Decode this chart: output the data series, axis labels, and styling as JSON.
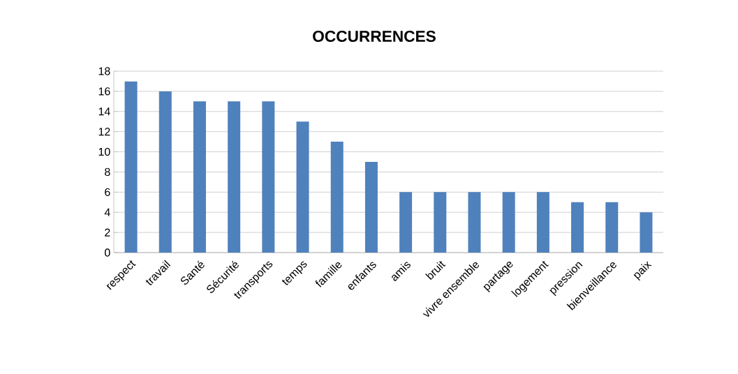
{
  "chart_data": {
    "type": "bar",
    "title": "OCCURRENCES",
    "categories": [
      "respect",
      "travail",
      "Santé",
      "Sécurité",
      "transports",
      "temps",
      "famille",
      "enfants",
      "amis",
      "bruit",
      "vivre ensemble",
      "partage",
      "logement",
      "pression",
      "bienveillance",
      "paix"
    ],
    "values": [
      17,
      16,
      15,
      15,
      15,
      13,
      11,
      9,
      6,
      6,
      6,
      6,
      6,
      5,
      5,
      4
    ],
    "color": "#4f81bd",
    "ylim": [
      0,
      18
    ],
    "yticks": [
      0,
      2,
      4,
      6,
      8,
      10,
      12,
      14,
      16,
      18
    ],
    "grid": "y"
  }
}
